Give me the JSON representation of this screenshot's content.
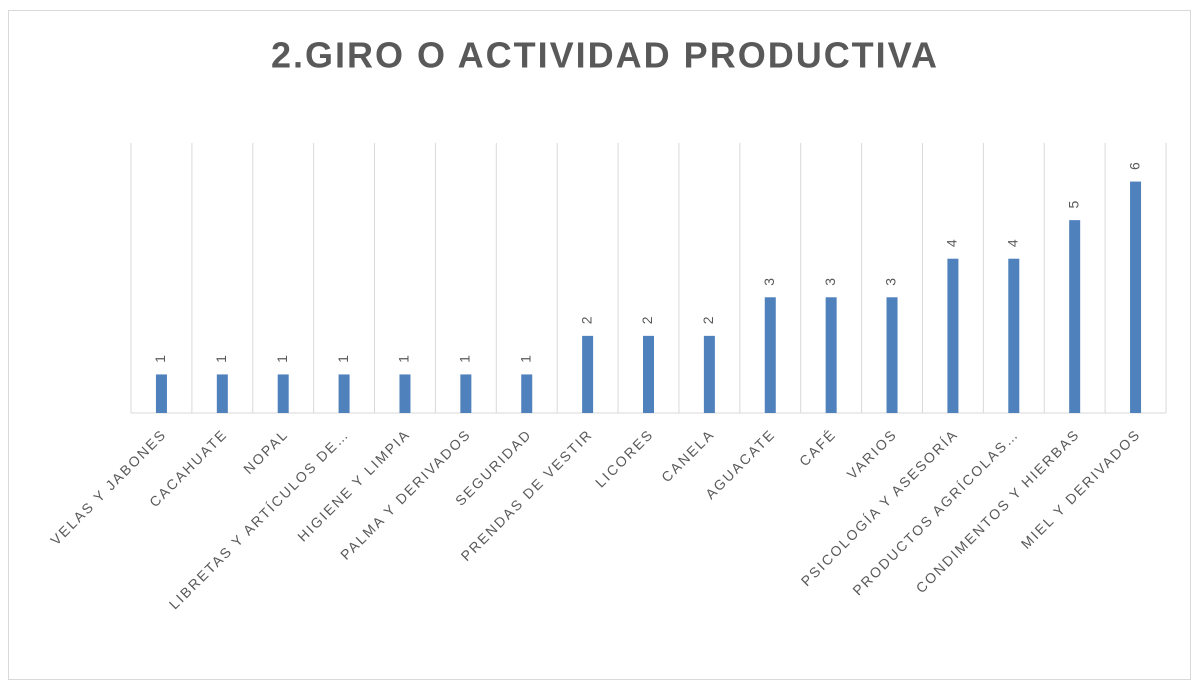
{
  "chart_data": {
    "type": "bar",
    "title": "2.GIRO O ACTIVIDAD PRODUCTIVA",
    "categories": [
      "VELAS Y JABONES",
      "CACAHUATE",
      "NOPAL",
      "LIBRETAS Y ARTÍCULOS DE…",
      "HIGIENE Y LIMPIA",
      "PALMA Y DERIVADOS",
      "SEGURIDAD",
      "PRENDAS DE VESTIR",
      "LICORES",
      "CANELA",
      "AGUACATE",
      "CAFÉ",
      "VARIOS",
      "PSICOLOGÍA Y ASESORÍA",
      "PRODUCTOS AGRÍCOLAS…",
      "CONDIMENTOS Y HIERBAS",
      "MIEL Y DERIVADOS"
    ],
    "values": [
      1,
      1,
      1,
      1,
      1,
      1,
      1,
      2,
      2,
      2,
      3,
      3,
      3,
      4,
      4,
      5,
      6
    ],
    "color": "#4f81bd",
    "ylim": [
      0,
      7
    ],
    "grid": true
  }
}
